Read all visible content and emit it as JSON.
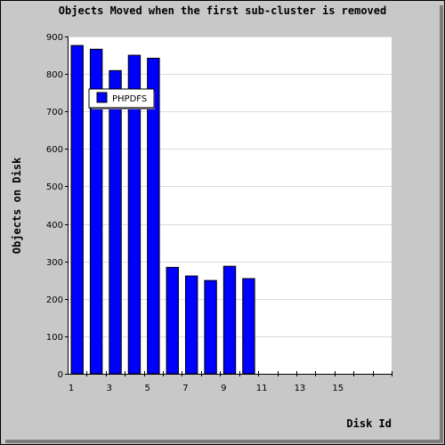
{
  "chart_data": {
    "type": "bar",
    "title": "Objects Moved when the first sub-cluster is removed",
    "xlabel": "Disk Id",
    "ylabel": "Objects on Disk",
    "categories": [
      1,
      2,
      3,
      4,
      5,
      6,
      7,
      8,
      9,
      10,
      11,
      12,
      13,
      14,
      15,
      16,
      17
    ],
    "x_tick_labels": [
      "1",
      "3",
      "5",
      "7",
      "9",
      "11",
      "13",
      "15"
    ],
    "x_tick_label_values": [
      1,
      3,
      5,
      7,
      9,
      11,
      13,
      15
    ],
    "series": [
      {
        "name": "PHPDFS",
        "color": "#0000ff",
        "values": [
          876,
          866,
          809,
          850,
          842,
          284,
          261,
          249,
          287,
          254,
          0,
          0,
          0,
          0,
          0,
          0,
          0
        ]
      }
    ],
    "ylim": [
      0,
      900
    ],
    "y_ticks": [
      0,
      100,
      200,
      300,
      400,
      500,
      600,
      700,
      800,
      900
    ],
    "grid": true,
    "legend_position": "top-left"
  }
}
